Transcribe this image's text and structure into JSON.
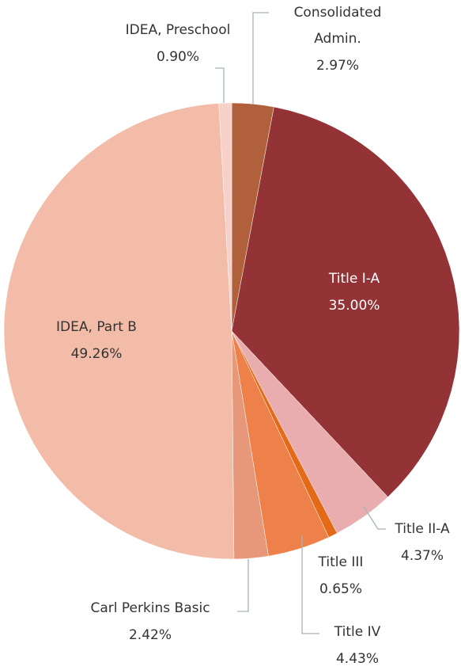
{
  "chart_data": {
    "type": "pie",
    "categories": [
      "Consolidated Admin.",
      "Title I-A",
      "Title II-A",
      "Title III",
      "Title IV",
      "Carl Perkins Basic",
      "IDEA, Part B",
      "IDEA, Preschool"
    ],
    "values": [
      2.97,
      35,
      4.37,
      0.65,
      4.43,
      2.42,
      49.26,
      0.9
    ],
    "value_labels": [
      "2.97%",
      "35.00%",
      "4.37%",
      "0.65%",
      "4.43%",
      "2.42%",
      "49.26%",
      "0.90%"
    ],
    "colors": [
      "#b0603a",
      "#943336",
      "#e9adb0",
      "#e46a18",
      "#ee8049",
      "#e8987a",
      "#f3bca8",
      "#f7d0c8"
    ]
  }
}
